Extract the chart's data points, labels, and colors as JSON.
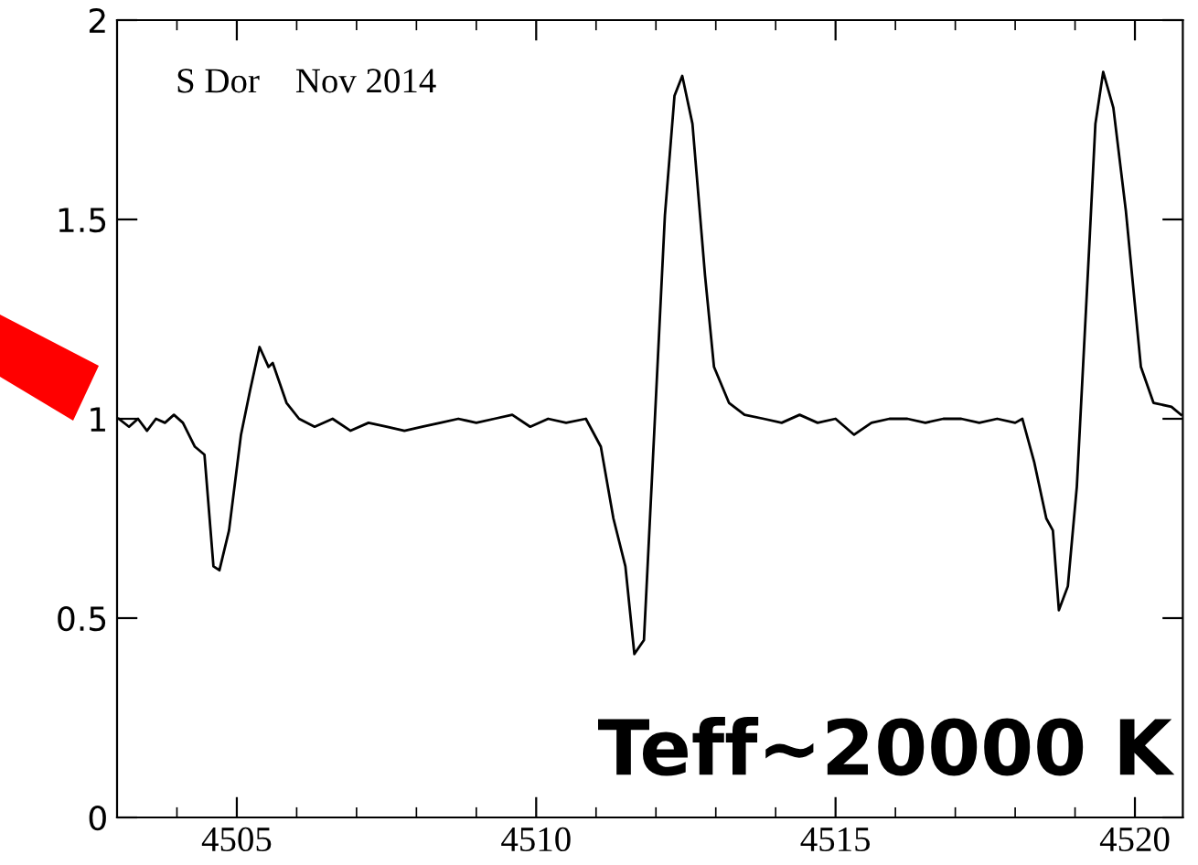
{
  "chart_data": {
    "type": "line",
    "x": [
      4503.03,
      4503.2,
      4503.35,
      4503.5,
      4503.65,
      4503.8,
      4503.95,
      4504.1,
      4504.3,
      4504.46,
      4504.61,
      4504.71,
      4504.87,
      4505.07,
      4505.22,
      4505.38,
      4505.53,
      4505.6,
      4505.83,
      4506.04,
      4506.3,
      4506.6,
      4506.9,
      4507.2,
      4507.5,
      4507.8,
      4508.1,
      4508.4,
      4508.7,
      4509.0,
      4509.3,
      4509.6,
      4509.9,
      4510.2,
      4510.5,
      4510.83,
      4511.08,
      4511.29,
      4511.49,
      4511.64,
      4511.8,
      4511.95,
      4512.15,
      4512.31,
      4512.44,
      4512.61,
      4512.82,
      4512.97,
      4513.22,
      4513.48,
      4513.8,
      4514.1,
      4514.4,
      4514.7,
      4515.0,
      4515.31,
      4515.6,
      4515.9,
      4516.2,
      4516.5,
      4516.8,
      4517.1,
      4517.4,
      4517.7,
      4518.0,
      4518.12,
      4518.32,
      4518.52,
      4518.63,
      4518.73,
      4518.88,
      4519.03,
      4519.24,
      4519.34,
      4519.47,
      4519.64,
      4519.85,
      4520.1,
      4520.31,
      4520.61,
      4520.77
    ],
    "series": [
      {
        "color": "#000000",
        "values": [
          1.0,
          0.98,
          1.0,
          0.97,
          1.0,
          0.99,
          1.01,
          0.99,
          0.93,
          0.91,
          0.63,
          0.62,
          0.72,
          0.96,
          1.07,
          1.18,
          1.13,
          1.14,
          1.04,
          1.0,
          0.98,
          1.0,
          0.97,
          0.99,
          0.98,
          0.97,
          0.98,
          0.99,
          1.0,
          0.99,
          1.0,
          1.01,
          0.98,
          1.0,
          0.99,
          1.0,
          0.93,
          0.75,
          0.63,
          0.41,
          0.445,
          0.9,
          1.51,
          1.81,
          1.86,
          1.74,
          1.36,
          1.13,
          1.04,
          1.01,
          1.0,
          0.99,
          1.01,
          0.99,
          1.0,
          0.96,
          0.99,
          1.0,
          1.0,
          0.99,
          1.0,
          1.0,
          0.99,
          1.0,
          0.99,
          1.0,
          0.89,
          0.75,
          0.72,
          0.52,
          0.58,
          0.83,
          1.44,
          1.74,
          1.87,
          1.78,
          1.52,
          1.13,
          1.04,
          1.03,
          1.01
        ]
      }
    ],
    "xlim": [
      4503,
      4520.8
    ],
    "xticks": [
      {
        "value": 4504,
        "label": null
      },
      4505,
      {
        "value": 4506,
        "label": null
      },
      {
        "value": 4507,
        "label": null
      },
      {
        "value": 4508,
        "label": null
      },
      {
        "value": 4509,
        "label": null
      },
      4510,
      {
        "value": 4511,
        "label": null
      },
      {
        "value": 4512,
        "label": null
      },
      {
        "value": 4513,
        "label": null
      },
      {
        "value": 4514,
        "label": null
      },
      4515,
      {
        "value": 4516,
        "label": null
      },
      {
        "value": 4517,
        "label": null
      },
      {
        "value": 4518,
        "label": null
      },
      {
        "value": 4519,
        "label": null
      },
      4520
    ],
    "ylim": [
      0,
      2
    ],
    "yticks": [
      0,
      0.5,
      1,
      1.5,
      2
    ],
    "grid": false,
    "line_style": "solid",
    "annotations": [
      "S Dor    Nov 2014",
      "Teff~20000 K"
    ]
  }
}
